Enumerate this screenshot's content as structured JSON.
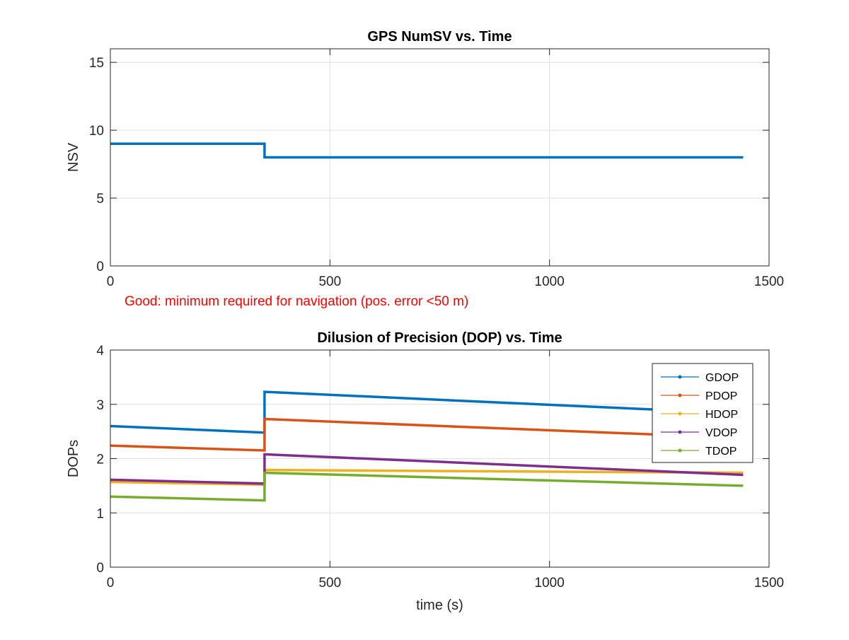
{
  "chart_data": [
    {
      "type": "line",
      "title": "GPS NumSV vs. Time",
      "xlabel": "",
      "ylabel": "NSV",
      "xlim": [
        0,
        1500
      ],
      "ylim": [
        0,
        16
      ],
      "xticks": [
        0,
        500,
        1000,
        1500
      ],
      "yticks": [
        0,
        5,
        10,
        15
      ],
      "grid": true,
      "annotation": "Good: minimum required for navigation (pos. error <50 m)",
      "series": [
        {
          "color": "#0072bd",
          "points": [
            [
              0,
              9
            ],
            [
              351,
              9
            ],
            [
              351,
              8
            ],
            [
              1441,
              8
            ]
          ]
        }
      ]
    },
    {
      "type": "line",
      "title": "Dilusion of Precision (DOP) vs. Time",
      "xlabel": "time (s)",
      "ylabel": "DOPs",
      "xlim": [
        0,
        1500
      ],
      "ylim": [
        0,
        4
      ],
      "xticks": [
        0,
        500,
        1000,
        1500
      ],
      "yticks": [
        0,
        1,
        2,
        3,
        4
      ],
      "grid": true,
      "legend": "top-right",
      "series": [
        {
          "name": "GDOP",
          "color": "#0072bd",
          "points": [
            [
              0,
              2.6
            ],
            [
              351,
              2.48
            ],
            [
              351,
              3.23
            ],
            [
              1441,
              2.83
            ]
          ]
        },
        {
          "name": "PDOP",
          "color": "#d95319",
          "points": [
            [
              0,
              2.24
            ],
            [
              351,
              2.15
            ],
            [
              351,
              2.73
            ],
            [
              1441,
              2.38
            ]
          ]
        },
        {
          "name": "HDOP",
          "color": "#edb120",
          "points": [
            [
              0,
              1.57
            ],
            [
              351,
              1.52
            ],
            [
              351,
              1.79
            ],
            [
              1441,
              1.74
            ]
          ]
        },
        {
          "name": "VDOP",
          "color": "#7e2f8e",
          "points": [
            [
              0,
              1.61
            ],
            [
              351,
              1.54
            ],
            [
              351,
              2.08
            ],
            [
              1441,
              1.7
            ]
          ]
        },
        {
          "name": "TDOP",
          "color": "#77ac30",
          "points": [
            [
              0,
              1.3
            ],
            [
              351,
              1.23
            ],
            [
              351,
              1.74
            ],
            [
              1441,
              1.5
            ]
          ]
        }
      ]
    }
  ]
}
